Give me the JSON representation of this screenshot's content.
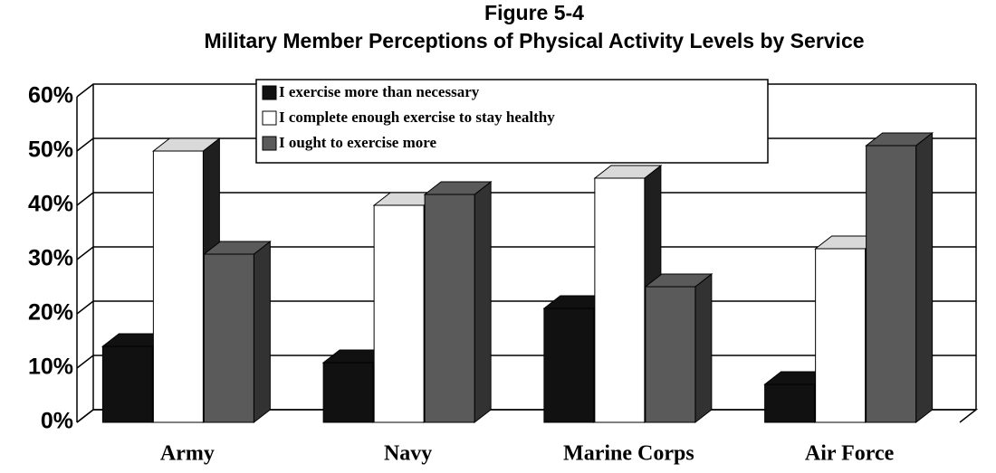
{
  "chart_data": {
    "type": "bar3d",
    "title": "Figure 5-4",
    "subtitle": "Military Member Perceptions of Physical Activity Levels by Service",
    "categories": [
      "Army",
      "Navy",
      "Marine Corps",
      "Air Force"
    ],
    "series": [
      {
        "name": "I exercise more than necessary",
        "color": "#111111",
        "values": [
          14,
          11,
          21,
          7
        ]
      },
      {
        "name": "I complete enough exercise to stay healthy",
        "color": "#ffffff",
        "values": [
          50,
          40,
          45,
          32
        ]
      },
      {
        "name": "I ought to exercise more",
        "color": "#5a5a5a",
        "values": [
          31,
          42,
          25,
          51
        ]
      }
    ],
    "ylim": [
      0,
      60
    ],
    "yticks": [
      {
        "value": 0,
        "label": "0%"
      },
      {
        "value": 10,
        "label": "10%"
      },
      {
        "value": 20,
        "label": "20%"
      },
      {
        "value": 30,
        "label": "30%"
      },
      {
        "value": 40,
        "label": "40%"
      },
      {
        "value": 50,
        "label": "50%"
      },
      {
        "value": 60,
        "label": "60%"
      }
    ],
    "grid": true
  }
}
